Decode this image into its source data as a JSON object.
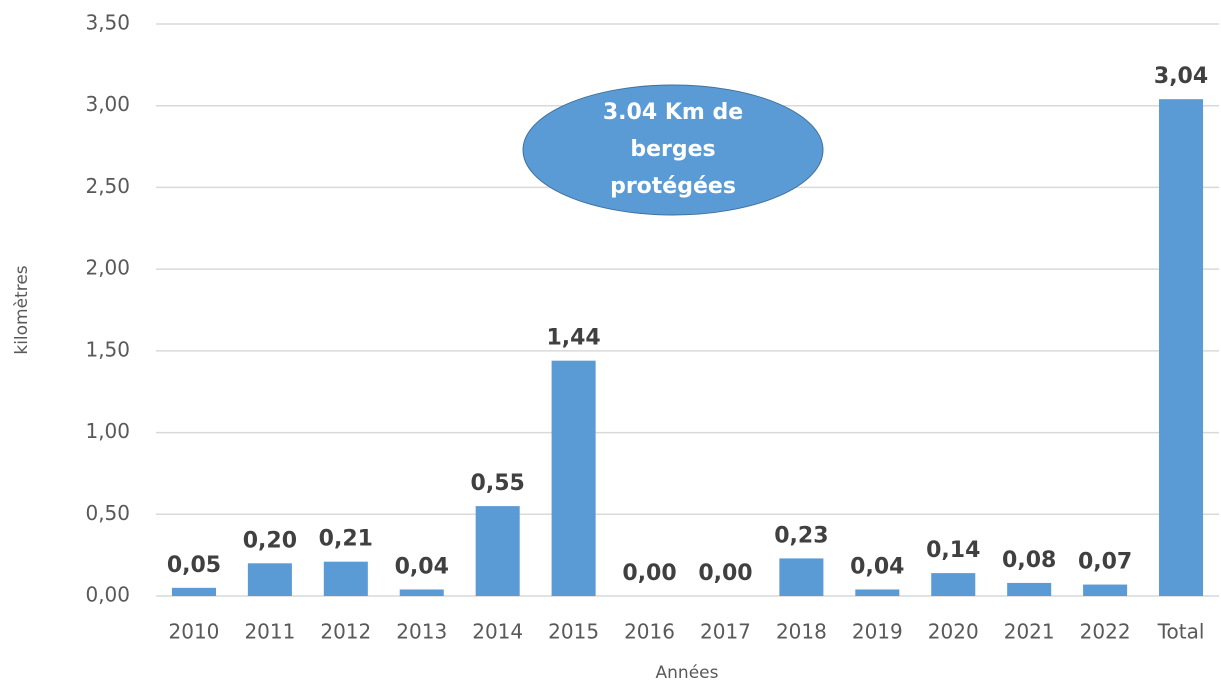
{
  "chart_data": {
    "type": "bar",
    "categories": [
      "2010",
      "2011",
      "2012",
      "2013",
      "2014",
      "2015",
      "2016",
      "2017",
      "2018",
      "2019",
      "2020",
      "2021",
      "2022",
      "Total"
    ],
    "values": [
      0.05,
      0.2,
      0.21,
      0.04,
      0.55,
      1.44,
      0,
      0,
      0.23,
      0.04,
      0.14,
      0.08,
      0.07,
      3.04
    ],
    "value_labels": [
      "0,05",
      "0,20",
      "0,21",
      "0,04",
      "0,55",
      "1,44",
      "0,00",
      "0,00",
      "0,23",
      "0,04",
      "0,14",
      "0,08",
      "0,07",
      "3,04"
    ],
    "color": "#5b9bd5",
    "ylim": [
      0,
      3.5
    ],
    "yticks": [
      {
        "value": 0,
        "label": "0,00"
      },
      {
        "value": 0.5,
        "label": "0,50"
      },
      {
        "value": 1,
        "label": "1,00"
      },
      {
        "value": 1.5,
        "label": "1,50"
      },
      {
        "value": 2,
        "label": "2,00"
      },
      {
        "value": 2.5,
        "label": "2,50"
      },
      {
        "value": 3,
        "label": "3,00"
      },
      {
        "value": 3.5,
        "label": "3,50"
      }
    ],
    "grid": true,
    "y_label": "kilomètres",
    "x_label": "Années",
    "annotation": [
      "3.04 Km de",
      "berges",
      "protégées"
    ]
  }
}
